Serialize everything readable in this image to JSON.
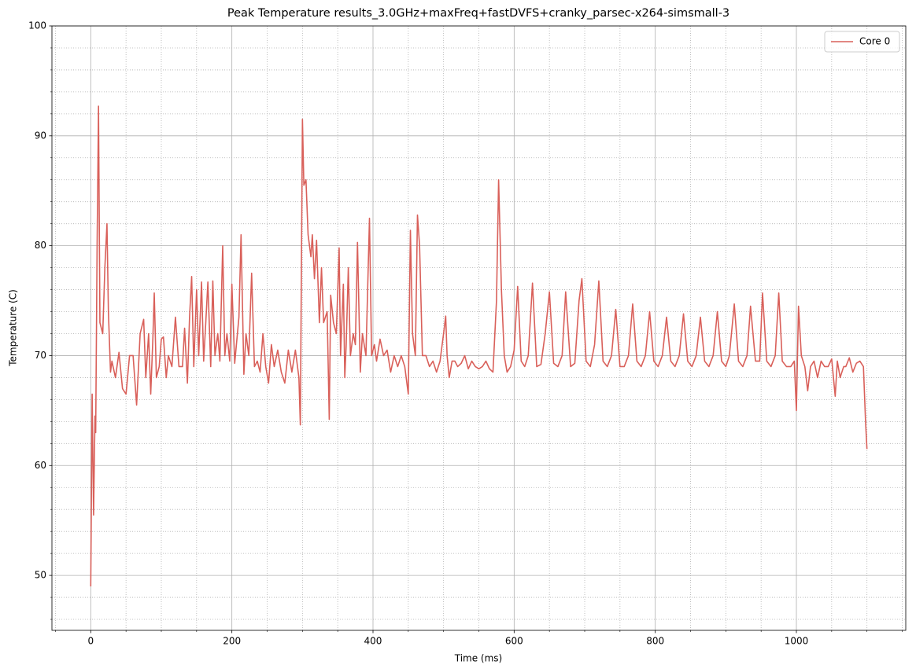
{
  "chart_data": {
    "type": "line",
    "title": "Peak Temperature results_3.0GHz+maxFreq+fastDVFS+cranky_parsec-x264-simsmall-3",
    "x_label": "Time (ms)",
    "y_label": "Temperature (C)",
    "xlim": [
      -55,
      1155
    ],
    "ylim": [
      45,
      100
    ],
    "xticks": [
      0,
      200,
      400,
      600,
      800,
      1000
    ],
    "yticks": [
      50,
      60,
      70,
      80,
      90,
      100
    ],
    "xticks_minor": [
      -50,
      50,
      100,
      150,
      250,
      300,
      350,
      450,
      500,
      550,
      650,
      700,
      750,
      850,
      900,
      950,
      1050,
      1100,
      1150
    ],
    "yticks_minor": [
      46,
      48,
      52,
      54,
      56,
      58,
      62,
      64,
      66,
      68,
      72,
      74,
      76,
      78,
      82,
      84,
      86,
      88,
      92,
      94,
      96,
      98
    ],
    "grid": true,
    "legend": "upper right",
    "x": [
      0,
      2,
      4,
      6,
      7,
      9,
      11,
      13,
      15,
      17,
      20,
      23,
      25,
      28,
      30,
      35,
      40,
      45,
      50,
      55,
      60,
      65,
      70,
      75,
      78,
      82,
      85,
      88,
      90,
      93,
      97,
      100,
      103,
      107,
      110,
      115,
      120,
      125,
      130,
      133,
      137,
      140,
      143,
      146,
      150,
      153,
      157,
      160,
      163,
      166,
      170,
      173,
      176,
      180,
      183,
      187,
      190,
      193,
      197,
      200,
      204,
      210,
      213,
      217,
      220,
      224,
      228,
      232,
      236,
      240,
      244,
      248,
      252,
      256,
      260,
      265,
      270,
      275,
      280,
      285,
      290,
      295,
      297,
      300,
      302,
      305,
      308,
      312,
      314,
      317,
      320,
      324,
      327,
      330,
      335,
      338,
      340,
      344,
      348,
      352,
      354,
      358,
      360,
      362,
      365,
      368,
      372,
      375,
      378,
      382,
      385,
      390,
      395,
      398,
      402,
      405,
      410,
      415,
      420,
      425,
      430,
      435,
      440,
      445,
      450,
      453,
      456,
      460,
      463,
      466,
      470,
      475,
      480,
      485,
      490,
      495,
      500,
      503,
      505,
      508,
      512,
      516,
      520,
      525,
      530,
      535,
      540,
      545,
      550,
      555,
      560,
      565,
      570,
      575,
      578,
      582,
      586,
      590,
      595,
      600,
      605,
      610,
      615,
      620,
      626,
      632,
      638,
      644,
      650,
      656,
      662,
      668,
      673,
      680,
      686,
      692,
      696,
      702,
      708,
      714,
      720,
      726,
      732,
      738,
      744,
      750,
      756,
      762,
      768,
      774,
      780,
      786,
      792,
      798,
      804,
      810,
      816,
      822,
      828,
      834,
      840,
      846,
      852,
      858,
      864,
      870,
      876,
      882,
      888,
      894,
      900,
      905,
      912,
      918,
      924,
      930,
      935,
      942,
      948,
      952,
      958,
      964,
      970,
      975,
      980,
      986,
      992,
      997,
      1000,
      1003,
      1007,
      1012,
      1016,
      1020,
      1025,
      1030,
      1035,
      1040,
      1045,
      1050,
      1055,
      1058,
      1062,
      1067,
      1070,
      1075,
      1080,
      1085,
      1090,
      1095,
      1098,
      1100
    ],
    "series": [
      {
        "name": "Core 0",
        "color": "#d9605a",
        "values": [
          49,
          66.5,
          55.5,
          64.5,
          63,
          80,
          92.7,
          73,
          72.5,
          72,
          78,
          82,
          74,
          68.5,
          69.5,
          68,
          70.3,
          67,
          66.5,
          70,
          70,
          65.5,
          72,
          73.3,
          68,
          72,
          66.5,
          71.5,
          75.7,
          68,
          69,
          71.5,
          71.7,
          68,
          70,
          69,
          73.5,
          69,
          69,
          72.5,
          67.5,
          73.5,
          77.2,
          69,
          76,
          70,
          76.7,
          69.5,
          73,
          76.7,
          69,
          76.8,
          70,
          72,
          69.5,
          80,
          70,
          72,
          69.5,
          76.5,
          69.3,
          73.5,
          81,
          68.3,
          72,
          70,
          77.5,
          69,
          69.5,
          68.5,
          72,
          69,
          67.5,
          71,
          69,
          70.5,
          68.5,
          67.5,
          70.5,
          68.5,
          70.5,
          68,
          63.7,
          91.5,
          85.5,
          86,
          81,
          79,
          81,
          77,
          80.5,
          73,
          78,
          73,
          74,
          64.2,
          75.5,
          73,
          72,
          79.8,
          70,
          76.5,
          68,
          71,
          78,
          70,
          72,
          71,
          80.3,
          68.5,
          72,
          70,
          82.5,
          70,
          71,
          69.5,
          71.5,
          70,
          70.5,
          68.5,
          70,
          69,
          70,
          69,
          66.5,
          81.4,
          72,
          70,
          82.8,
          80,
          70,
          70,
          69,
          69.5,
          68.5,
          69.5,
          72,
          73.6,
          70,
          68,
          69.5,
          69.5,
          69,
          69.3,
          70,
          68.8,
          69.5,
          69,
          68.8,
          69,
          69.5,
          68.8,
          68.5,
          75,
          86,
          76,
          70,
          68.5,
          69,
          70.5,
          76.3,
          69.5,
          69,
          70,
          76.6,
          69,
          69.2,
          72,
          75.8,
          69.3,
          69,
          70,
          75.8,
          69,
          69.3,
          75,
          77,
          69.5,
          69,
          71,
          76.8,
          69.5,
          69,
          70,
          74.2,
          69,
          69,
          70,
          74.7,
          69.5,
          69,
          70,
          74,
          69.5,
          69,
          70,
          73.5,
          69.5,
          69,
          70,
          73.8,
          69.5,
          69,
          70,
          73.5,
          69.5,
          69,
          70,
          74,
          69.5,
          69,
          70,
          74.7,
          69.5,
          69,
          70,
          74.5,
          69.5,
          69.5,
          75.7,
          69.5,
          69,
          70,
          75.7,
          69.5,
          69,
          69,
          69.5,
          65,
          74.5,
          70,
          69,
          66.8,
          69,
          69.5,
          68,
          69.5,
          69,
          69,
          69.7,
          66.3,
          69.5,
          68,
          69,
          69,
          69.8,
          68.5,
          69.3,
          69.5,
          69,
          64,
          61.5
        ]
      }
    ]
  }
}
